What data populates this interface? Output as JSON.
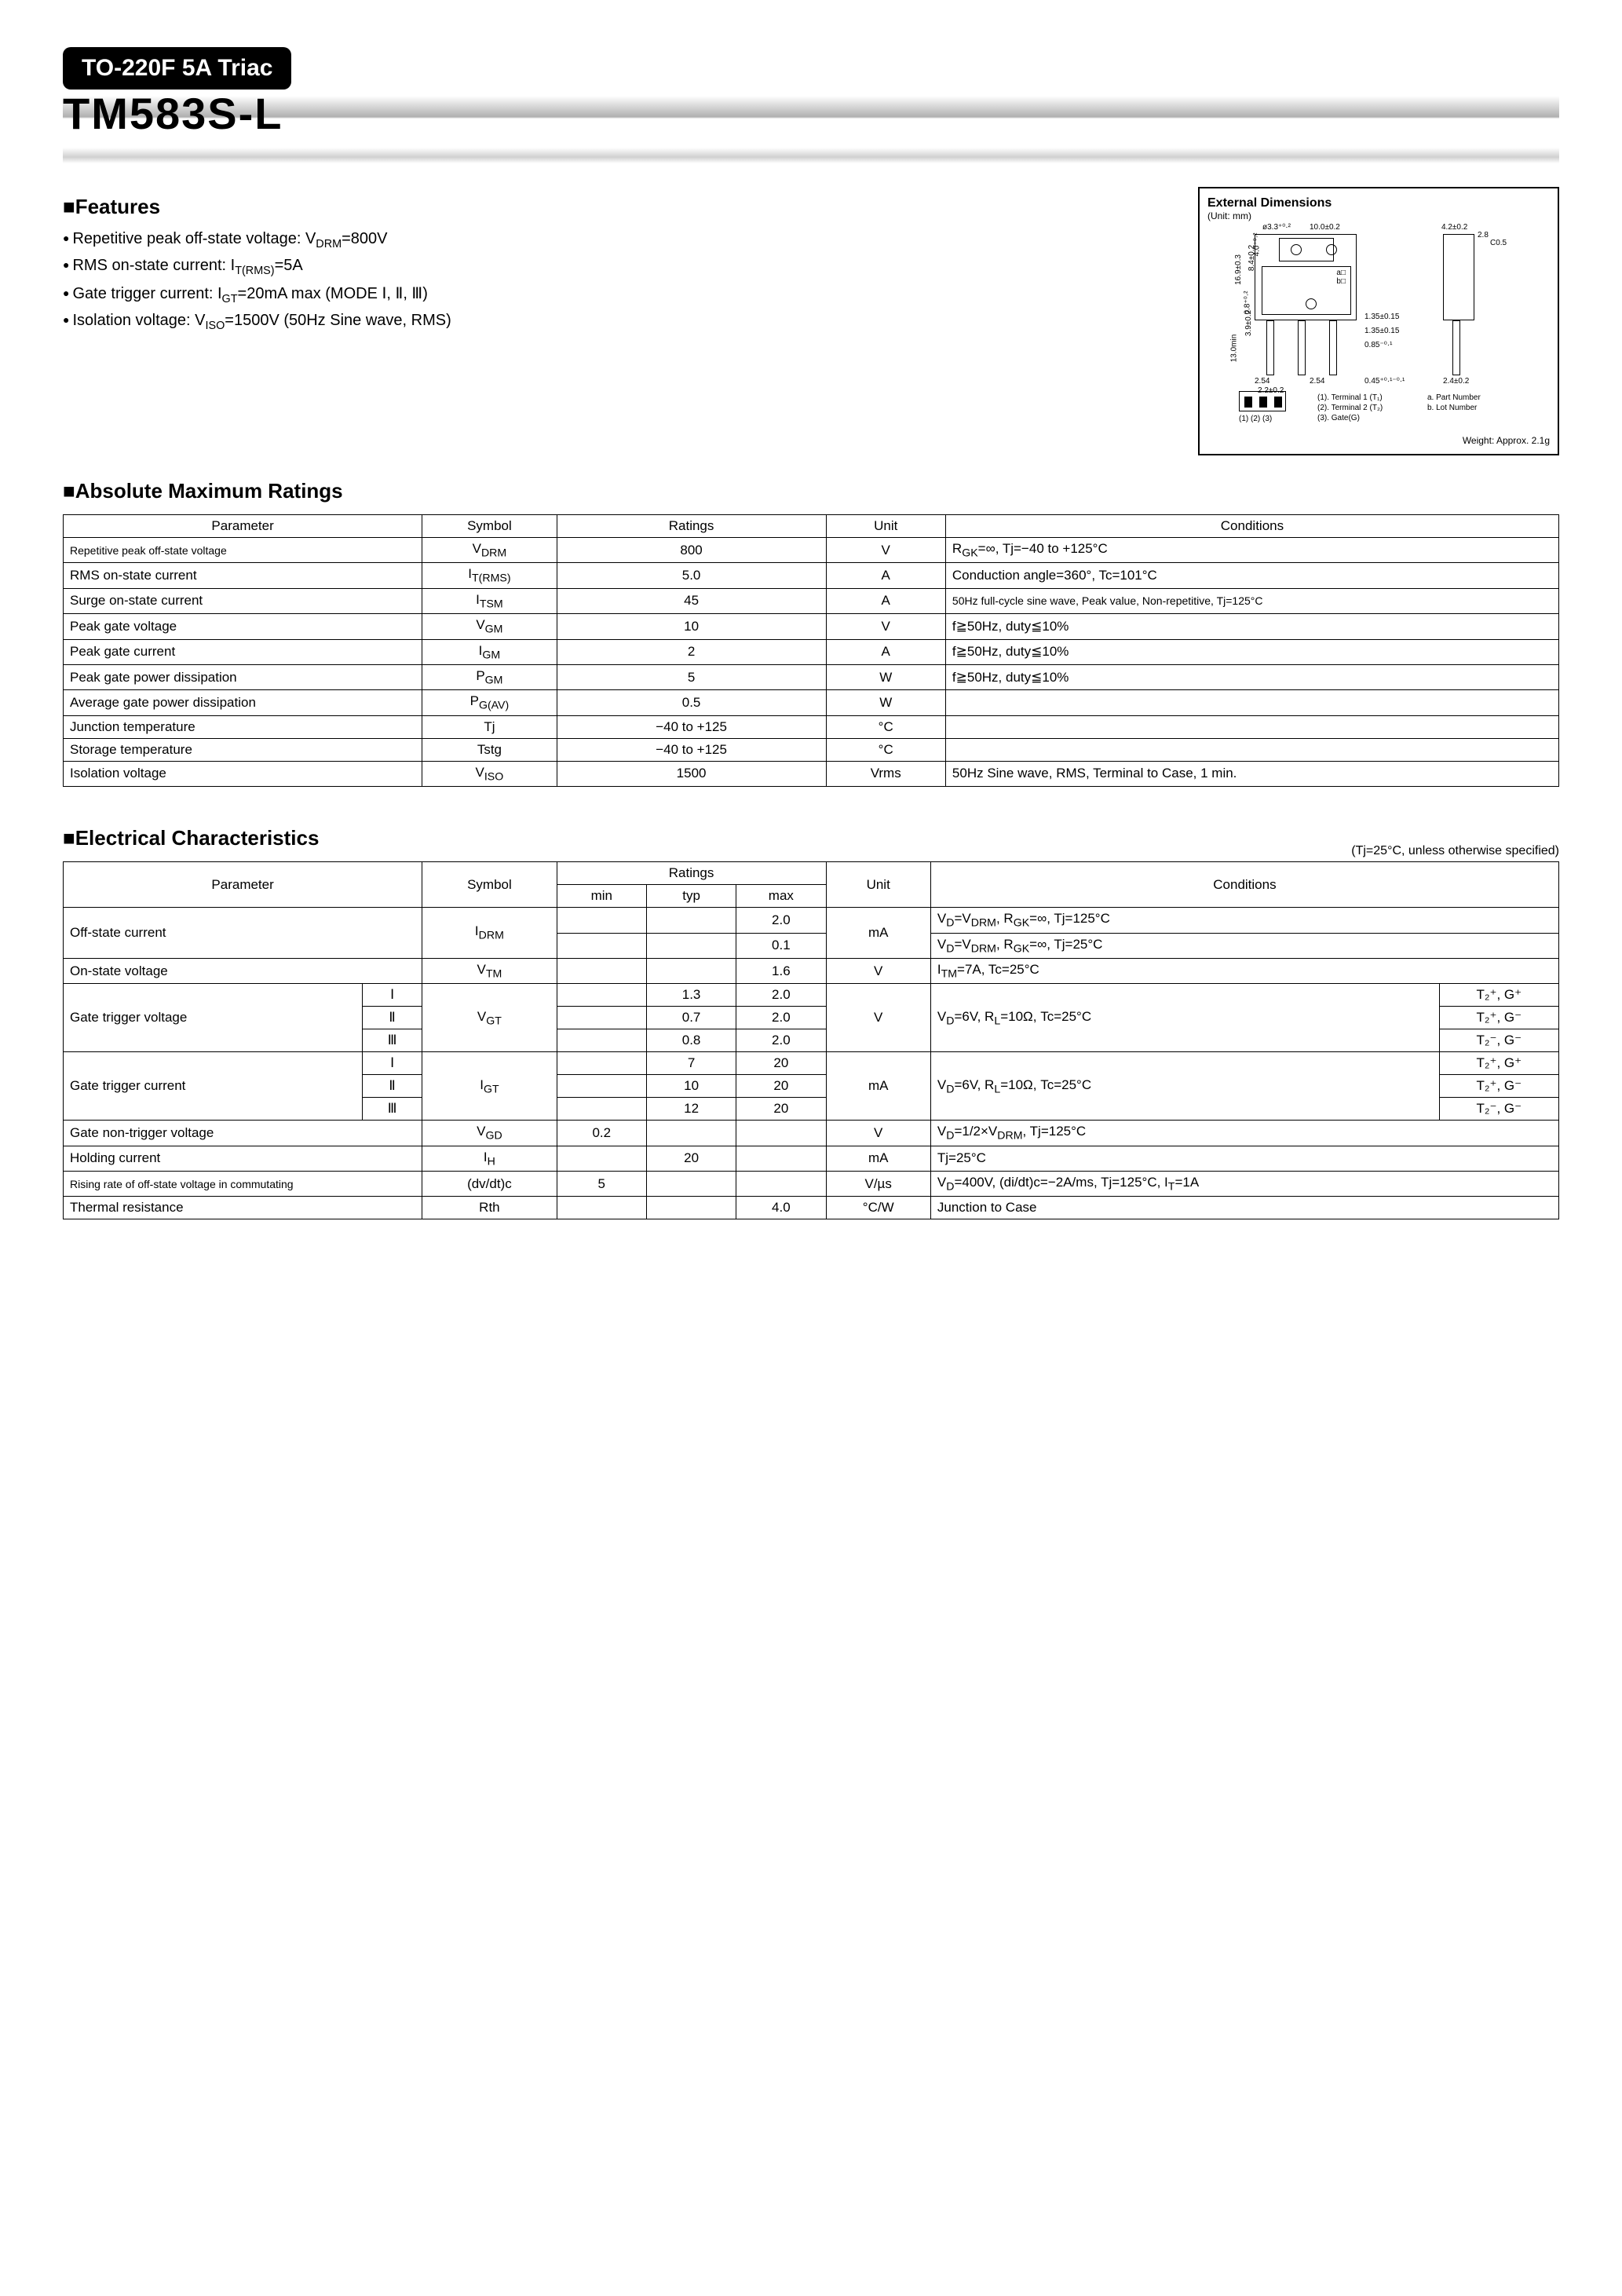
{
  "header": {
    "badge": "TO-220F 5A Triac",
    "part_number": "TM583S-L"
  },
  "features": {
    "title": "■Features",
    "items": [
      {
        "pre": "Repetitive peak off-state voltage: V",
        "sub": "DRM",
        "post": "=800V"
      },
      {
        "pre": "RMS on-state current: I",
        "sub": "T(RMS)",
        "post": "=5A"
      },
      {
        "pre": "Gate trigger current: I",
        "sub": "GT",
        "post": "=20mA max (MODE Ⅰ, Ⅱ, Ⅲ)"
      },
      {
        "pre": "Isolation voltage: V",
        "sub": "ISO",
        "post": "=1500V (50Hz Sine wave, RMS)"
      }
    ]
  },
  "dimensions": {
    "title": "External Dimensions",
    "unit": "(Unit: mm)",
    "labels": {
      "d1": "ø3.3⁺⁰·²",
      "d2": "10.0±0.2",
      "d3": "4.2±0.2",
      "d4": "2.8",
      "d5": "C0.5",
      "d6": "16.9±0.3",
      "d7": "8.4±0.2",
      "d8": "4.0⁺⁰·²",
      "d9": "0.8⁺⁰·²",
      "d10": "3.9±0.2",
      "d11": "13.0min",
      "d12": "1.35±0.15",
      "d13": "1.35±0.15",
      "d14": "0.85⁻⁰·¹",
      "d15": "2.54",
      "d16": "2.54",
      "d17": "0.45⁺⁰·¹⁻⁰·¹",
      "d18": "2.4±0.2",
      "d19": "2.2±0.2",
      "a": "a",
      "b": "b"
    },
    "terminals": [
      "(1). Terminal 1 (T₁)",
      "(2). Terminal 2 (T₂)",
      "(3). Gate(G)"
    ],
    "notes": [
      "a. Part Number",
      "b. Lot Number"
    ],
    "pins_label": "(1) (2) (3)",
    "weight": "Weight: Approx. 2.1g"
  },
  "amr": {
    "title": "■Absolute Maximum Ratings",
    "columns": [
      "Parameter",
      "Symbol",
      "Ratings",
      "Unit",
      "Conditions"
    ],
    "rows": [
      {
        "p": "Repetitive peak off-state voltage",
        "s": "V<sub>DRM</sub>",
        "r": "800",
        "u": "V",
        "c": "R<sub>GK</sub>=∞, Tj=−40 to +125°C"
      },
      {
        "p": "RMS on-state current",
        "s": "I<sub>T(RMS)</sub>",
        "r": "5.0",
        "u": "A",
        "c": "Conduction angle=360°, Tc=101°C"
      },
      {
        "p": "Surge on-state current",
        "s": "I<sub>TSM</sub>",
        "r": "45",
        "u": "A",
        "c": "50Hz full-cycle sine wave, Peak value, Non-repetitive, Tj=125°C",
        "csmall": true
      },
      {
        "p": "Peak gate voltage",
        "s": "V<sub>GM</sub>",
        "r": "10",
        "u": "V",
        "c": "f≧50Hz, duty≦10%"
      },
      {
        "p": "Peak gate current",
        "s": "I<sub>GM</sub>",
        "r": "2",
        "u": "A",
        "c": "f≧50Hz, duty≦10%"
      },
      {
        "p": "Peak gate power dissipation",
        "s": "P<sub>GM</sub>",
        "r": "5",
        "u": "W",
        "c": "f≧50Hz, duty≦10%"
      },
      {
        "p": "Average gate power dissipation",
        "s": "P<sub>G(AV)</sub>",
        "r": "0.5",
        "u": "W",
        "c": ""
      },
      {
        "p": "Junction temperature",
        "s": "Tj",
        "r": "−40 to +125",
        "u": "°C",
        "c": ""
      },
      {
        "p": "Storage temperature",
        "s": "Tstg",
        "r": "−40 to +125",
        "u": "°C",
        "c": ""
      },
      {
        "p": "Isolation voltage",
        "s": "V<sub>ISO</sub>",
        "r": "1500",
        "u": "Vrms",
        "c": "50Hz Sine wave, RMS, Terminal to Case, 1 min."
      }
    ]
  },
  "ec": {
    "title": "■Electrical Characteristics",
    "note": "(Tj=25°C, unless otherwise specified)",
    "headers": {
      "parameter": "Parameter",
      "symbol": "Symbol",
      "ratings": "Ratings",
      "min": "min",
      "typ": "typ",
      "max": "max",
      "unit": "Unit",
      "conditions": "Conditions"
    },
    "off_state": {
      "p": "Off-state current",
      "s": "I<sub>DRM</sub>",
      "u": "mA",
      "rows": [
        {
          "min": "",
          "typ": "",
          "max": "2.0",
          "c": "V<sub>D</sub>=V<sub>DRM</sub>, R<sub>GK</sub>=∞, Tj=125°C"
        },
        {
          "min": "",
          "typ": "",
          "max": "0.1",
          "c": "V<sub>D</sub>=V<sub>DRM</sub>, R<sub>GK</sub>=∞, Tj=25°C"
        }
      ]
    },
    "on_state": {
      "p": "On-state voltage",
      "s": "V<sub>TM</sub>",
      "min": "",
      "typ": "",
      "max": "1.6",
      "u": "V",
      "c": "I<sub>TM</sub>=7A, Tc=25°C"
    },
    "vgt": {
      "p": "Gate trigger voltage",
      "s": "V<sub>GT</sub>",
      "u": "V",
      "c": "V<sub>D</sub>=6V, R<sub>L</sub>=10Ω, Tc=25°C",
      "modes": [
        {
          "m": "Ⅰ",
          "min": "",
          "typ": "1.3",
          "max": "2.0",
          "q": "T₂⁺, G⁺"
        },
        {
          "m": "Ⅱ",
          "min": "",
          "typ": "0.7",
          "max": "2.0",
          "q": "T₂⁺, G⁻"
        },
        {
          "m": "Ⅲ",
          "min": "",
          "typ": "0.8",
          "max": "2.0",
          "q": "T₂⁻, G⁻"
        }
      ]
    },
    "igt": {
      "p": "Gate trigger current",
      "s": "I<sub>GT</sub>",
      "u": "mA",
      "c": "V<sub>D</sub>=6V, R<sub>L</sub>=10Ω, Tc=25°C",
      "modes": [
        {
          "m": "Ⅰ",
          "min": "",
          "typ": "7",
          "max": "20",
          "q": "T₂⁺, G⁺"
        },
        {
          "m": "Ⅱ",
          "min": "",
          "typ": "10",
          "max": "20",
          "q": "T₂⁺, G⁻"
        },
        {
          "m": "Ⅲ",
          "min": "",
          "typ": "12",
          "max": "20",
          "q": "T₂⁻, G⁻"
        }
      ]
    },
    "simple": [
      {
        "p": "Gate non-trigger voltage",
        "s": "V<sub>GD</sub>",
        "min": "0.2",
        "typ": "",
        "max": "",
        "u": "V",
        "c": "V<sub>D</sub>=1/2×V<sub>DRM</sub>, Tj=125°C"
      },
      {
        "p": "Holding current",
        "s": "I<sub>H</sub>",
        "min": "",
        "typ": "20",
        "max": "",
        "u": "mA",
        "c": "Tj=25°C"
      },
      {
        "p": "Rising rate of off-state voltage in commutating",
        "psmall": true,
        "s": "(dv/dt)c",
        "min": "5",
        "typ": "",
        "max": "",
        "u": "V/µs",
        "c": "V<sub>D</sub>=400V, (di/dt)c=−2A/ms, Tj=125°C, I<sub>T</sub>=1A"
      },
      {
        "p": "Thermal resistance",
        "s": "Rth",
        "min": "",
        "typ": "",
        "max": "4.0",
        "u": "°C/W",
        "c": "Junction to Case"
      }
    ]
  },
  "colors": {
    "black": "#000000",
    "white": "#ffffff",
    "grad_mid": "#b0b0b0"
  }
}
